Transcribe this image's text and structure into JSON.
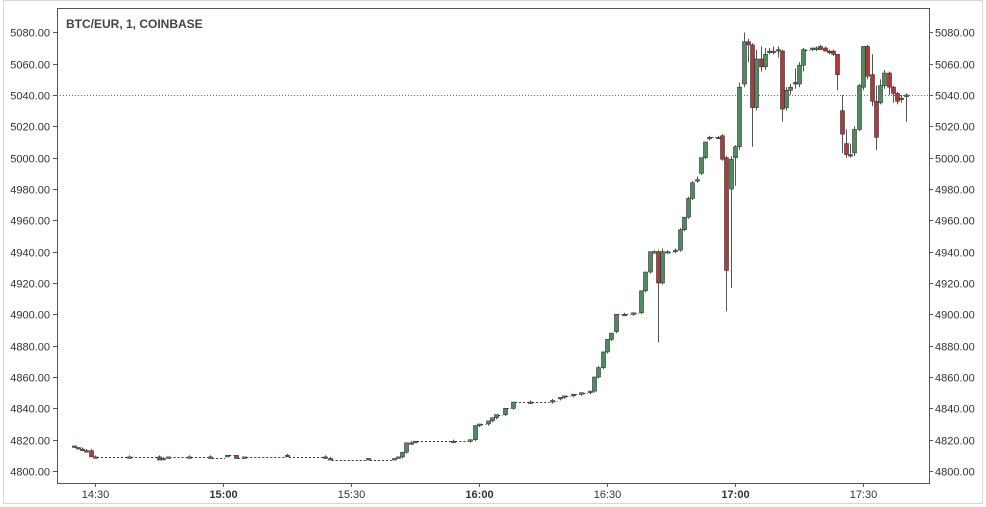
{
  "chart_data": {
    "type": "candlestick",
    "title": "BTC/EUR, 1, COINBASE",
    "ylim": [
      4792,
      5090
    ],
    "y_ticks": [
      "4800.00",
      "4820.00",
      "4840.00",
      "4860.00",
      "4880.00",
      "4900.00",
      "4920.00",
      "4940.00",
      "4960.00",
      "4980.00",
      "5000.00",
      "5020.00",
      "5040.00",
      "5060.00",
      "5080.00"
    ],
    "x_ticks": [
      {
        "label": "14:30",
        "time": "14:30",
        "major": false
      },
      {
        "label": "15:00",
        "time": "15:00",
        "major": true
      },
      {
        "label": "15:30",
        "time": "15:30",
        "major": false
      },
      {
        "label": "16:00",
        "time": "16:00",
        "major": true
      },
      {
        "label": "16:30",
        "time": "16:30",
        "major": false
      },
      {
        "label": "17:00",
        "time": "17:00",
        "major": true
      },
      {
        "label": "17:30",
        "time": "17:30",
        "major": false
      }
    ],
    "x_range": [
      "14:24",
      "17:44"
    ],
    "last_price": 5040,
    "grid": false,
    "colors": {
      "up": "#4d8c5e",
      "down": "#b03a3a",
      "line": "#2e7d5b",
      "frame": "#555555"
    },
    "candles": [
      {
        "t": "14:25",
        "o": 4816,
        "h": 4816,
        "l": 4815,
        "c": 4815
      },
      {
        "t": "14:26",
        "o": 4815,
        "h": 4815,
        "l": 4814,
        "c": 4814
      },
      {
        "t": "14:27",
        "o": 4814,
        "h": 4815,
        "l": 4813,
        "c": 4813
      },
      {
        "t": "14:28",
        "o": 4813,
        "h": 4814,
        "l": 4812,
        "c": 4812
      },
      {
        "t": "14:29",
        "o": 4813,
        "h": 4814,
        "l": 4811,
        "c": 4809
      },
      {
        "t": "14:30",
        "o": 4809,
        "h": 4810,
        "l": 4809,
        "c": 4809
      },
      {
        "t": "14:38",
        "o": 4809,
        "h": 4810,
        "l": 4809,
        "c": 4809
      },
      {
        "t": "14:45",
        "o": 4809,
        "h": 4810,
        "l": 4807,
        "c": 4807
      },
      {
        "t": "14:46",
        "o": 4808,
        "h": 4809,
        "l": 4808,
        "c": 4808
      },
      {
        "t": "14:47",
        "o": 4808,
        "h": 4809,
        "l": 4808,
        "c": 4809
      },
      {
        "t": "14:52",
        "o": 4809,
        "h": 4810,
        "l": 4809,
        "c": 4809
      },
      {
        "t": "14:57",
        "o": 4809,
        "h": 4810,
        "l": 4808,
        "c": 4808
      },
      {
        "t": "15:01",
        "o": 4809,
        "h": 4810,
        "l": 4809,
        "c": 4810
      },
      {
        "t": "15:03",
        "o": 4810,
        "h": 4810,
        "l": 4808,
        "c": 4808
      },
      {
        "t": "15:05",
        "o": 4808,
        "h": 4809,
        "l": 4808,
        "c": 4809
      },
      {
        "t": "15:15",
        "o": 4810,
        "h": 4811,
        "l": 4809,
        "c": 4809
      },
      {
        "t": "15:24",
        "o": 4809,
        "h": 4810,
        "l": 4808,
        "c": 4808
      },
      {
        "t": "15:25",
        "o": 4808,
        "h": 4809,
        "l": 4807,
        "c": 4807
      },
      {
        "t": "15:34",
        "o": 4808,
        "h": 4808,
        "l": 4807,
        "c": 4807
      },
      {
        "t": "15:40",
        "o": 4807,
        "h": 4808,
        "l": 4807,
        "c": 4808
      },
      {
        "t": "15:41",
        "o": 4808,
        "h": 4809,
        "l": 4808,
        "c": 4809
      },
      {
        "t": "15:42",
        "o": 4809,
        "h": 4812,
        "l": 4808,
        "c": 4812
      },
      {
        "t": "15:43",
        "o": 4812,
        "h": 4818,
        "l": 4811,
        "c": 4818
      },
      {
        "t": "15:44",
        "o": 4818,
        "h": 4819,
        "l": 4817,
        "c": 4817
      },
      {
        "t": "15:45",
        "o": 4818,
        "h": 4819,
        "l": 4818,
        "c": 4819
      },
      {
        "t": "15:54",
        "o": 4819,
        "h": 4820,
        "l": 4818,
        "c": 4819
      },
      {
        "t": "15:58",
        "o": 4819,
        "h": 4820,
        "l": 4818,
        "c": 4820
      },
      {
        "t": "15:59",
        "o": 4820,
        "h": 4829,
        "l": 4819,
        "c": 4829
      },
      {
        "t": "16:00",
        "o": 4829,
        "h": 4830,
        "l": 4828,
        "c": 4830
      },
      {
        "t": "16:02",
        "o": 4830,
        "h": 4832,
        "l": 4829,
        "c": 4832
      },
      {
        "t": "16:03",
        "o": 4832,
        "h": 4834,
        "l": 4831,
        "c": 4834
      },
      {
        "t": "16:04",
        "o": 4834,
        "h": 4836,
        "l": 4833,
        "c": 4836
      },
      {
        "t": "16:06",
        "o": 4836,
        "h": 4840,
        "l": 4835,
        "c": 4840
      },
      {
        "t": "16:08",
        "o": 4840,
        "h": 4844,
        "l": 4839,
        "c": 4844
      },
      {
        "t": "16:12",
        "o": 4844,
        "h": 4845,
        "l": 4843,
        "c": 4844
      },
      {
        "t": "16:17",
        "o": 4844,
        "h": 4846,
        "l": 4843,
        "c": 4845
      },
      {
        "t": "16:19",
        "o": 4846,
        "h": 4847,
        "l": 4845,
        "c": 4847
      },
      {
        "t": "16:20",
        "o": 4847,
        "h": 4848,
        "l": 4846,
        "c": 4848
      },
      {
        "t": "16:22",
        "o": 4848,
        "h": 4849,
        "l": 4847,
        "c": 4849
      },
      {
        "t": "16:24",
        "o": 4849,
        "h": 4850,
        "l": 4848,
        "c": 4850
      },
      {
        "t": "16:26",
        "o": 4850,
        "h": 4851,
        "l": 4849,
        "c": 4851
      },
      {
        "t": "16:27",
        "o": 4851,
        "h": 4860,
        "l": 4850,
        "c": 4860
      },
      {
        "t": "16:28",
        "o": 4860,
        "h": 4867,
        "l": 4859,
        "c": 4866
      },
      {
        "t": "16:29",
        "o": 4866,
        "h": 4876,
        "l": 4865,
        "c": 4876
      },
      {
        "t": "16:30",
        "o": 4876,
        "h": 4884,
        "l": 4875,
        "c": 4884
      },
      {
        "t": "16:31",
        "o": 4884,
        "h": 4888,
        "l": 4883,
        "c": 4888
      },
      {
        "t": "16:32",
        "o": 4889,
        "h": 4900,
        "l": 4888,
        "c": 4900
      },
      {
        "t": "16:34",
        "o": 4900,
        "h": 4901,
        "l": 4899,
        "c": 4900
      },
      {
        "t": "16:36",
        "o": 4900,
        "h": 4901,
        "l": 4899,
        "c": 4901
      },
      {
        "t": "16:38",
        "o": 4901,
        "h": 4915,
        "l": 4900,
        "c": 4915
      },
      {
        "t": "16:39",
        "o": 4915,
        "h": 4927,
        "l": 4914,
        "c": 4927
      },
      {
        "t": "16:40",
        "o": 4927,
        "h": 4940,
        "l": 4926,
        "c": 4940
      },
      {
        "t": "16:41",
        "o": 4940,
        "h": 4941,
        "l": 4939,
        "c": 4940
      },
      {
        "t": "16:42",
        "o": 4940,
        "h": 4941,
        "l": 4882,
        "c": 4920
      },
      {
        "t": "16:43",
        "o": 4920,
        "h": 4942,
        "l": 4919,
        "c": 4940
      },
      {
        "t": "16:44",
        "o": 4940,
        "h": 4941,
        "l": 4939,
        "c": 4940
      },
      {
        "t": "16:46",
        "o": 4940,
        "h": 4942,
        "l": 4939,
        "c": 4941
      },
      {
        "t": "16:47",
        "o": 4941,
        "h": 4955,
        "l": 4940,
        "c": 4954
      },
      {
        "t": "16:48",
        "o": 4954,
        "h": 4962,
        "l": 4953,
        "c": 4962
      },
      {
        "t": "16:49",
        "o": 4962,
        "h": 4975,
        "l": 4961,
        "c": 4974
      },
      {
        "t": "16:50",
        "o": 4974,
        "h": 4985,
        "l": 4973,
        "c": 4984
      },
      {
        "t": "16:51",
        "o": 4985,
        "h": 4988,
        "l": 4984,
        "c": 4986
      },
      {
        "t": "16:52",
        "o": 4990,
        "h": 5000,
        "l": 4989,
        "c": 5000
      },
      {
        "t": "16:53",
        "o": 5000,
        "h": 5010,
        "l": 4999,
        "c": 5010
      },
      {
        "t": "16:54",
        "o": 5012,
        "h": 5014,
        "l": 5011,
        "c": 5013
      },
      {
        "t": "16:56",
        "o": 5013,
        "h": 5014,
        "l": 5012,
        "c": 5013
      },
      {
        "t": "16:57",
        "o": 5014,
        "h": 5015,
        "l": 4998,
        "c": 4999
      },
      {
        "t": "16:58",
        "o": 5000,
        "h": 5001,
        "l": 4902,
        "c": 4928
      },
      {
        "t": "16:59",
        "o": 4980,
        "h": 5001,
        "l": 4917,
        "c": 4999
      },
      {
        "t": "17:00",
        "o": 5000,
        "h": 5008,
        "l": 4982,
        "c": 5007
      },
      {
        "t": "17:01",
        "o": 5007,
        "h": 5048,
        "l": 5005,
        "c": 5045
      },
      {
        "t": "17:02",
        "o": 5047,
        "h": 5080,
        "l": 5045,
        "c": 5074
      },
      {
        "t": "17:03",
        "o": 5074,
        "h": 5076,
        "l": 5061,
        "c": 5072
      },
      {
        "t": "17:04",
        "o": 5072,
        "h": 5073,
        "l": 5007,
        "c": 5032
      },
      {
        "t": "17:05",
        "o": 5032,
        "h": 5069,
        "l": 5030,
        "c": 5063
      },
      {
        "t": "17:06",
        "o": 5063,
        "h": 5071,
        "l": 5055,
        "c": 5058
      },
      {
        "t": "17:07",
        "o": 5058,
        "h": 5070,
        "l": 5056,
        "c": 5066
      },
      {
        "t": "17:08",
        "o": 5068,
        "h": 5070,
        "l": 5066,
        "c": 5068
      },
      {
        "t": "17:09",
        "o": 5068,
        "h": 5071,
        "l": 5066,
        "c": 5068
      },
      {
        "t": "17:10",
        "o": 5069,
        "h": 5071,
        "l": 5064,
        "c": 5068
      },
      {
        "t": "17:11",
        "o": 5068,
        "h": 5069,
        "l": 5023,
        "c": 5031
      },
      {
        "t": "17:12",
        "o": 5032,
        "h": 5045,
        "l": 5030,
        "c": 5043
      },
      {
        "t": "17:13",
        "o": 5043,
        "h": 5047,
        "l": 5040,
        "c": 5045
      },
      {
        "t": "17:14",
        "o": 5048,
        "h": 5057,
        "l": 5044,
        "c": 5047
      },
      {
        "t": "17:15",
        "o": 5047,
        "h": 5061,
        "l": 5045,
        "c": 5059
      },
      {
        "t": "17:16",
        "o": 5059,
        "h": 5070,
        "l": 5055,
        "c": 5069
      },
      {
        "t": "17:18",
        "o": 5069,
        "h": 5070,
        "l": 5068,
        "c": 5070
      },
      {
        "t": "17:19",
        "o": 5070,
        "h": 5071,
        "l": 5068,
        "c": 5070
      },
      {
        "t": "17:20",
        "o": 5071,
        "h": 5072,
        "l": 5069,
        "c": 5069
      },
      {
        "t": "17:21",
        "o": 5070,
        "h": 5071,
        "l": 5068,
        "c": 5068
      },
      {
        "t": "17:22",
        "o": 5068,
        "h": 5069,
        "l": 5066,
        "c": 5067
      },
      {
        "t": "17:23",
        "o": 5068,
        "h": 5069,
        "l": 5065,
        "c": 5066
      },
      {
        "t": "17:24",
        "o": 5066,
        "h": 5066,
        "l": 5043,
        "c": 5053
      },
      {
        "t": "17:25",
        "o": 5030,
        "h": 5040,
        "l": 5003,
        "c": 5015
      },
      {
        "t": "17:26",
        "o": 5009,
        "h": 5018,
        "l": 5000,
        "c": 5002
      },
      {
        "t": "17:27",
        "o": 5002,
        "h": 5009,
        "l": 5000,
        "c": 5001
      },
      {
        "t": "17:28",
        "o": 5003,
        "h": 5020,
        "l": 5001,
        "c": 5018
      },
      {
        "t": "17:29",
        "o": 5018,
        "h": 5047,
        "l": 5017,
        "c": 5046
      },
      {
        "t": "17:30",
        "o": 5045,
        "h": 5071,
        "l": 5043,
        "c": 5071
      },
      {
        "t": "17:31",
        "o": 5071,
        "h": 5072,
        "l": 5050,
        "c": 5052
      },
      {
        "t": "17:32",
        "o": 5053,
        "h": 5066,
        "l": 5033,
        "c": 5036
      },
      {
        "t": "17:33",
        "o": 5036,
        "h": 5046,
        "l": 5005,
        "c": 5013
      },
      {
        "t": "17:34",
        "o": 5035,
        "h": 5050,
        "l": 5034,
        "c": 5046
      },
      {
        "t": "17:35",
        "o": 5046,
        "h": 5056,
        "l": 5044,
        "c": 5054
      },
      {
        "t": "17:36",
        "o": 5054,
        "h": 5055,
        "l": 5040,
        "c": 5045
      },
      {
        "t": "17:37",
        "o": 5045,
        "h": 5046,
        "l": 5035,
        "c": 5041
      },
      {
        "t": "17:38",
        "o": 5041,
        "h": 5042,
        "l": 5034,
        "c": 5036
      },
      {
        "t": "17:39",
        "o": 5037,
        "h": 5040,
        "l": 5035,
        "c": 5038
      },
      {
        "t": "17:40",
        "o": 5039,
        "h": 5041,
        "l": 5023,
        "c": 5040
      }
    ]
  }
}
